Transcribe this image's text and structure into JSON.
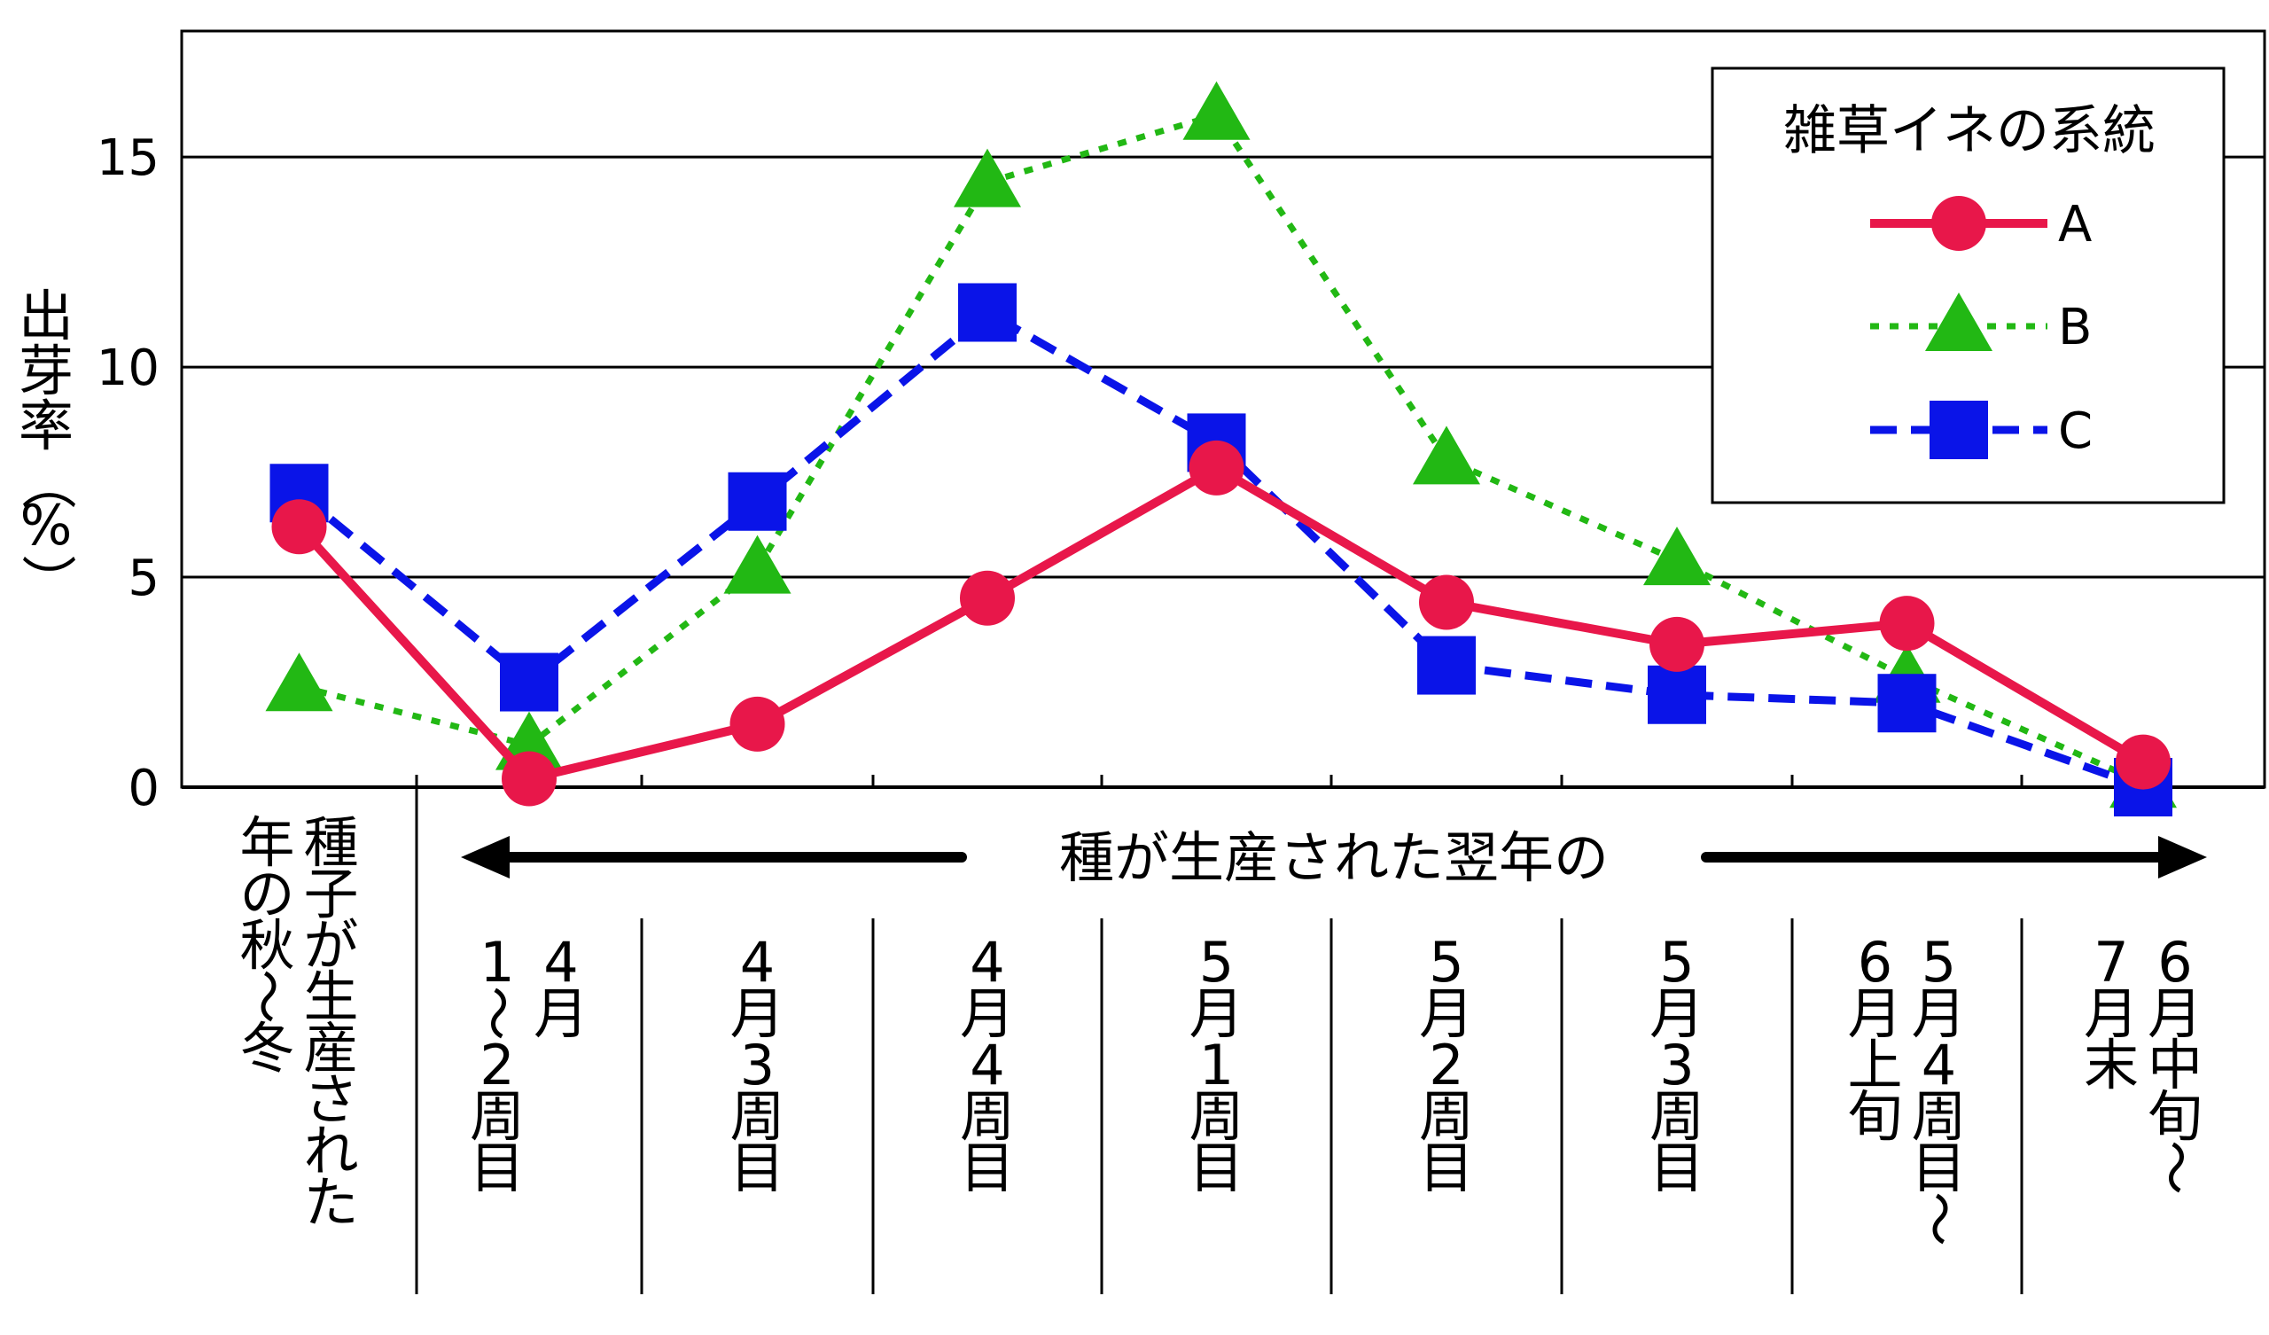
{
  "chart_data": {
    "type": "line",
    "ylabel": "出芽率（%）",
    "ylim": [
      0,
      18
    ],
    "yticks": [
      "0",
      "5",
      "10",
      "15"
    ],
    "ytick_values": [
      0,
      5,
      10,
      15
    ],
    "grid": "horizontal",
    "categories": [
      "種子が生産された年の秋〜冬",
      "4月1〜2周目",
      "4月3周目",
      "4月4周目",
      "5月1周目",
      "5月2周目",
      "5月3周目",
      "5月4周目〜6月上旬",
      "6月中旬〜7月末"
    ],
    "category_columns": [
      [
        "種子が生産された",
        "年の秋〜冬"
      ],
      [
        "4月",
        "1〜2周目"
      ],
      [
        "4月3周目"
      ],
      [
        "4月4周目"
      ],
      [
        "5月1周目"
      ],
      [
        "5月2周目"
      ],
      [
        "5月3周目"
      ],
      [
        "5月4周目〜",
        "6月上旬"
      ],
      [
        "6月中旬〜",
        "7月末"
      ]
    ],
    "arrow_label": "種が生産された翌年の",
    "legend": {
      "title": "雑草イネの系統",
      "position": "top-right"
    },
    "series": [
      {
        "name": "A",
        "color": "#e8174a",
        "marker": "circle",
        "dash": "solid",
        "values": [
          6.2,
          0.2,
          1.5,
          4.5,
          7.6,
          4.4,
          3.4,
          3.9,
          0.6
        ]
      },
      {
        "name": "B",
        "color": "#22b814",
        "marker": "triangle",
        "dash": "dotted",
        "values": [
          2.4,
          1.0,
          5.2,
          14.4,
          16.0,
          7.8,
          5.4,
          2.6,
          0.1
        ]
      },
      {
        "name": "C",
        "color": "#0a14e8",
        "marker": "square",
        "dash": "dashed",
        "values": [
          7.0,
          2.5,
          6.8,
          11.3,
          8.2,
          2.9,
          2.2,
          2.0,
          0.0
        ]
      }
    ]
  }
}
